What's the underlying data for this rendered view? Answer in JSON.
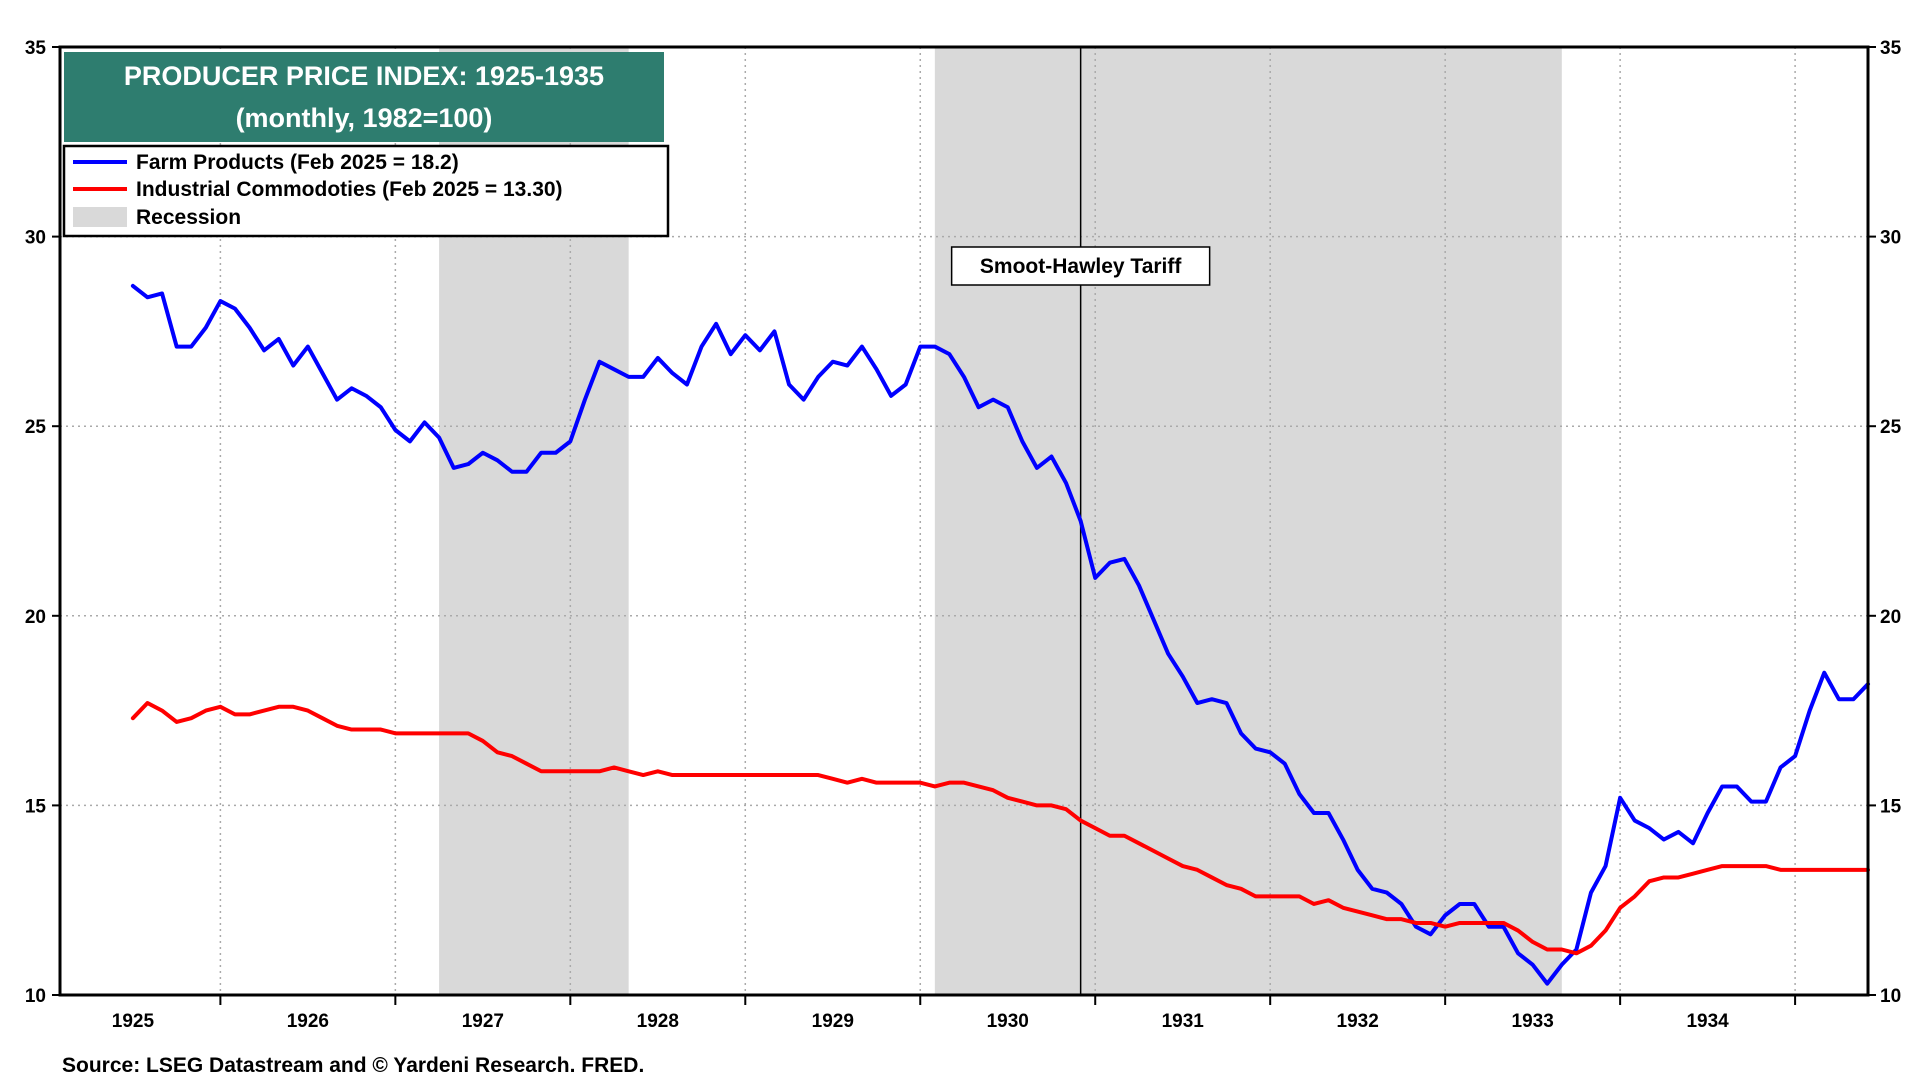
{
  "chart_data": {
    "type": "line",
    "title": "PRODUCER PRICE INDEX: 1925-1935",
    "subtitle": "(monthly, 1982=100)",
    "source": "Source: LSEG Datastream and © Yardeni Research. FRED.",
    "annotation": {
      "label": "Smoot-Hawley Tariff",
      "date": "1930-06"
    },
    "x_start": "1924-08",
    "x_end": "1934-12",
    "xticks": [
      "1925",
      "1926",
      "1927",
      "1928",
      "1929",
      "1930",
      "1931",
      "1932",
      "1933",
      "1934"
    ],
    "ylim": [
      10,
      35
    ],
    "yticks": [
      "10",
      "15",
      "20",
      "25",
      "30",
      "35"
    ],
    "grid": true,
    "legend_position": "top-left",
    "legend": {
      "farm": "Farm Products (Feb 2025 = 18.2)",
      "industrial": "Industrial Commodoties (Feb 2025 = 13.30)",
      "recession": "Recession"
    },
    "colors": {
      "farm": "#0000ff",
      "industrial": "#ff0000",
      "recession": "#d9d9d9",
      "title_bg": "#2e7d6f"
    },
    "recessions": [
      {
        "start": "1926-10",
        "end": "1927-11"
      },
      {
        "start": "1929-08",
        "end": "1933-03"
      }
    ],
    "series": [
      {
        "name": "Farm Products (Feb 2025 = 18.2)",
        "start": "1925-01",
        "values": [
          28.7,
          28.4,
          28.5,
          27.1,
          27.1,
          27.6,
          28.3,
          28.1,
          27.6,
          27.0,
          27.3,
          26.6,
          27.1,
          26.4,
          25.7,
          26.0,
          25.8,
          25.5,
          24.9,
          24.6,
          25.1,
          24.7,
          23.9,
          24.0,
          24.3,
          24.1,
          23.8,
          23.8,
          24.3,
          24.3,
          24.6,
          25.7,
          26.7,
          26.5,
          26.3,
          26.3,
          26.8,
          26.4,
          26.1,
          27.1,
          27.7,
          26.9,
          27.4,
          27.0,
          27.5,
          26.1,
          25.7,
          26.3,
          26.7,
          26.6,
          27.1,
          26.5,
          25.8,
          26.1,
          27.1,
          27.1,
          26.9,
          26.3,
          25.5,
          25.7,
          25.5,
          24.6,
          23.9,
          24.2,
          23.5,
          22.5,
          21.0,
          21.4,
          21.5,
          20.8,
          19.9,
          19.0,
          18.4,
          17.7,
          17.8,
          17.7,
          16.9,
          16.5,
          16.4,
          16.1,
          15.3,
          14.8,
          14.8,
          14.1,
          13.3,
          12.8,
          12.7,
          12.4,
          11.8,
          11.6,
          12.1,
          12.4,
          12.4,
          11.8,
          11.8,
          11.1,
          10.8,
          10.3,
          10.8,
          11.2,
          12.7,
          13.4,
          15.2,
          14.6,
          14.4,
          14.1,
          14.3,
          14.0,
          14.8,
          15.5,
          15.5,
          15.1,
          15.1,
          16.0,
          16.3,
          17.5,
          18.5,
          17.8,
          17.8,
          18.2
        ]
      },
      {
        "name": "Industrial Commodoties (Feb 2025 = 13.30)",
        "start": "1925-01",
        "values": [
          17.3,
          17.7,
          17.5,
          17.2,
          17.3,
          17.5,
          17.6,
          17.4,
          17.4,
          17.5,
          17.6,
          17.6,
          17.5,
          17.3,
          17.1,
          17.0,
          17.0,
          17.0,
          16.9,
          16.9,
          16.9,
          16.9,
          16.9,
          16.9,
          16.7,
          16.4,
          16.3,
          16.1,
          15.9,
          15.9,
          15.9,
          15.9,
          15.9,
          16.0,
          15.9,
          15.8,
          15.9,
          15.8,
          15.8,
          15.8,
          15.8,
          15.8,
          15.8,
          15.8,
          15.8,
          15.8,
          15.8,
          15.8,
          15.7,
          15.6,
          15.7,
          15.6,
          15.6,
          15.6,
          15.6,
          15.5,
          15.6,
          15.6,
          15.5,
          15.4,
          15.2,
          15.1,
          15.0,
          15.0,
          14.9,
          14.6,
          14.4,
          14.2,
          14.2,
          14.0,
          13.8,
          13.6,
          13.4,
          13.3,
          13.1,
          12.9,
          12.8,
          12.6,
          12.6,
          12.6,
          12.6,
          12.4,
          12.5,
          12.3,
          12.2,
          12.1,
          12.0,
          12.0,
          11.9,
          11.9,
          11.8,
          11.9,
          11.9,
          11.9,
          11.9,
          11.7,
          11.4,
          11.2,
          11.2,
          11.1,
          11.3,
          11.7,
          12.3,
          12.6,
          13.0,
          13.1,
          13.1,
          13.2,
          13.3,
          13.4,
          13.4,
          13.4,
          13.4,
          13.3,
          13.3,
          13.3,
          13.3,
          13.3,
          13.3,
          13.3
        ]
      }
    ]
  }
}
